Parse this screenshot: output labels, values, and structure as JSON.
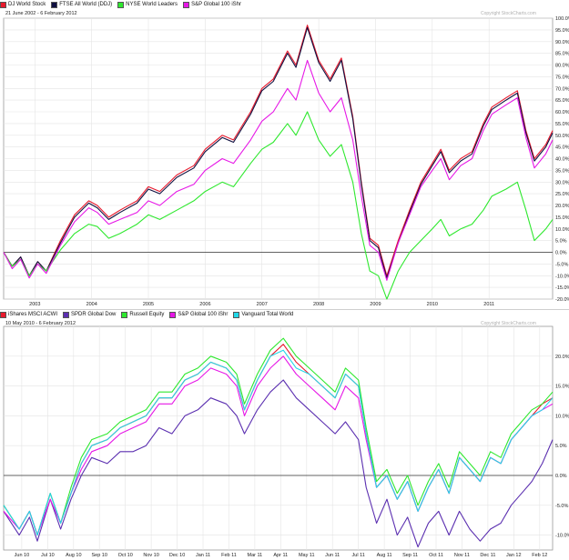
{
  "chart_data": [
    {
      "type": "line",
      "title": "21 June 2002 - 6 February 2012",
      "watermark": "Copyright StockCharts.com",
      "legend_position": "top-left",
      "grid": true,
      "ylim": [
        -20,
        100
      ],
      "x_range": [
        2002.45,
        2012.12
      ],
      "y_ticks": [
        -20,
        -15,
        -10,
        -5,
        0,
        5,
        10,
        15,
        20,
        25,
        30,
        35,
        40,
        45,
        50,
        55,
        60,
        65,
        70,
        75,
        80,
        85,
        90,
        95,
        100
      ],
      "y_tick_labels": [
        "-20.0%",
        "-15.0%",
        "-10.0%",
        "-5.0%",
        "0.0%",
        "5.0%",
        "10.0%",
        "15.0%",
        "20.0%",
        "25.0%",
        "30.0%",
        "35.0%",
        "40.0%",
        "45.0%",
        "50.0%",
        "55.0%",
        "60.0%",
        "65.0%",
        "70.0%",
        "75.0%",
        "80.0%",
        "85.0%",
        "90.0%",
        "95.0%",
        "100.0%"
      ],
      "x_ticks": [
        2003,
        2004,
        2005,
        2006,
        2007,
        2008,
        2009,
        2010,
        2011
      ],
      "x_tick_labels": [
        "2003",
        "2004",
        "2005",
        "2006",
        "2007",
        "2008",
        "2009",
        "2010",
        "2011"
      ],
      "series": [
        {
          "name": "DJ World Stock",
          "color": "#e8192c",
          "x": [
            2002.45,
            2002.6,
            2002.75,
            2002.9,
            2003.05,
            2003.2,
            2003.45,
            2003.7,
            2003.95,
            2004.1,
            2004.3,
            2004.5,
            2004.8,
            2005.0,
            2005.2,
            2005.5,
            2005.8,
            2006.0,
            2006.3,
            2006.5,
            2006.8,
            2007.0,
            2007.2,
            2007.45,
            2007.6,
            2007.8,
            2008.0,
            2008.2,
            2008.4,
            2008.6,
            2008.75,
            2008.9,
            2009.05,
            2009.2,
            2009.4,
            2009.6,
            2009.8,
            2010.0,
            2010.15,
            2010.3,
            2010.5,
            2010.7,
            2010.9,
            2011.05,
            2011.3,
            2011.5,
            2011.65,
            2011.8,
            2012.0,
            2012.12
          ],
          "y": [
            0,
            -6,
            -2,
            -10,
            -4,
            -8,
            5,
            16,
            22,
            20,
            15,
            18,
            22,
            28,
            26,
            33,
            37,
            44,
            50,
            48,
            60,
            70,
            74,
            86,
            80,
            97,
            82,
            74,
            83,
            58,
            30,
            6,
            3,
            -10,
            5,
            18,
            30,
            38,
            44,
            35,
            40,
            43,
            55,
            62,
            66,
            69,
            52,
            40,
            46,
            52
          ]
        },
        {
          "name": "FTSE All World (DDJ)",
          "color": "#101040",
          "x": [
            2002.45,
            2002.6,
            2002.75,
            2002.9,
            2003.05,
            2003.2,
            2003.45,
            2003.7,
            2003.95,
            2004.1,
            2004.3,
            2004.5,
            2004.8,
            2005.0,
            2005.2,
            2005.5,
            2005.8,
            2006.0,
            2006.3,
            2006.5,
            2006.8,
            2007.0,
            2007.2,
            2007.45,
            2007.6,
            2007.8,
            2008.0,
            2008.2,
            2008.4,
            2008.6,
            2008.75,
            2008.9,
            2009.05,
            2009.2,
            2009.4,
            2009.6,
            2009.8,
            2010.0,
            2010.15,
            2010.3,
            2010.5,
            2010.7,
            2010.9,
            2011.05,
            2011.3,
            2011.5,
            2011.65,
            2011.8,
            2012.0,
            2012.12
          ],
          "y": [
            0,
            -6,
            -2,
            -10,
            -4,
            -8,
            4,
            15,
            21,
            19,
            14,
            17,
            21,
            27,
            25,
            32,
            36,
            43,
            49,
            47,
            59,
            69,
            73,
            85,
            79,
            96,
            81,
            73,
            82,
            57,
            29,
            5,
            2,
            -11,
            4,
            17,
            29,
            37,
            43,
            34,
            39,
            42,
            54,
            61,
            65,
            68,
            51,
            39,
            45,
            51
          ]
        },
        {
          "name": "NYSE World Leaders",
          "color": "#2ee82e",
          "x": [
            2002.45,
            2002.6,
            2002.75,
            2002.9,
            2003.05,
            2003.2,
            2003.45,
            2003.7,
            2003.95,
            2004.1,
            2004.3,
            2004.5,
            2004.8,
            2005.0,
            2005.2,
            2005.5,
            2005.8,
            2006.0,
            2006.3,
            2006.5,
            2006.8,
            2007.0,
            2007.2,
            2007.45,
            2007.6,
            2007.8,
            2008.0,
            2008.2,
            2008.4,
            2008.6,
            2008.75,
            2008.9,
            2009.05,
            2009.2,
            2009.4,
            2009.6,
            2009.8,
            2010.0,
            2010.15,
            2010.3,
            2010.5,
            2010.7,
            2010.9,
            2011.05,
            2011.3,
            2011.5,
            2011.65,
            2011.8,
            2012.0,
            2012.12
          ],
          "y": [
            0,
            -6,
            -3,
            -10,
            -5,
            -8,
            1,
            8,
            12,
            11,
            6,
            8,
            12,
            16,
            14,
            18,
            22,
            26,
            30,
            28,
            38,
            44,
            47,
            55,
            50,
            60,
            48,
            41,
            46,
            30,
            8,
            -8,
            -10,
            -20,
            -8,
            0,
            5,
            10,
            14,
            7,
            10,
            12,
            18,
            24,
            27,
            30,
            18,
            5,
            10,
            14
          ]
        },
        {
          "name": "S&P Global 100 iShr",
          "color": "#e617e6",
          "x": [
            2002.45,
            2002.6,
            2002.75,
            2002.9,
            2003.05,
            2003.2,
            2003.45,
            2003.7,
            2003.95,
            2004.1,
            2004.3,
            2004.5,
            2004.8,
            2005.0,
            2005.2,
            2005.5,
            2005.8,
            2006.0,
            2006.3,
            2006.5,
            2006.8,
            2007.0,
            2007.2,
            2007.45,
            2007.6,
            2007.8,
            2008.0,
            2008.2,
            2008.4,
            2008.6,
            2008.75,
            2008.9,
            2009.05,
            2009.2,
            2009.4,
            2009.6,
            2009.8,
            2010.0,
            2010.15,
            2010.3,
            2010.5,
            2010.7,
            2010.9,
            2011.05,
            2011.3,
            2011.5,
            2011.65,
            2011.8,
            2012.0,
            2012.12
          ],
          "y": [
            0,
            -7,
            -3,
            -11,
            -5,
            -9,
            3,
            13,
            19,
            17,
            12,
            14,
            17,
            22,
            20,
            26,
            29,
            35,
            40,
            38,
            48,
            56,
            60,
            70,
            65,
            82,
            68,
            60,
            66,
            48,
            24,
            3,
            0,
            -12,
            4,
            16,
            28,
            35,
            40,
            31,
            37,
            40,
            52,
            59,
            63,
            66,
            49,
            36,
            42,
            48
          ]
        }
      ]
    },
    {
      "type": "line",
      "title": "10 May 2010 - 6 February 2012",
      "watermark": "Copyright StockCharts.com",
      "legend_position": "top-left",
      "grid": true,
      "ylim": [
        -12.5,
        25
      ],
      "x_range": [
        0,
        21.2
      ],
      "y_ticks": [
        -10,
        -5,
        0,
        5,
        10,
        15,
        20
      ],
      "y_tick_labels": [
        "-10.0%",
        "-5.0%",
        "0.0%",
        "5.0%",
        "10.0%",
        "15.0%",
        "20.0%"
      ],
      "x_ticks": [
        0.7,
        1.7,
        2.7,
        3.7,
        4.7,
        5.7,
        6.7,
        7.7,
        8.7,
        9.7,
        10.7,
        11.7,
        12.7,
        13.7,
        14.7,
        15.7,
        16.7,
        17.7,
        18.7,
        19.7,
        20.7
      ],
      "x_tick_labels": [
        "Jun 10",
        "Jul 10",
        "Aug 10",
        "Sep 10",
        "Oct 10",
        "Nov 10",
        "Dec 10",
        "Jan 11",
        "Feb 11",
        "Mar 11",
        "Apr 11",
        "May 11",
        "Jun 11",
        "Jul 11",
        "Aug 11",
        "Sep 11",
        "Oct 11",
        "Nov 11",
        "Dec 11",
        "Jan 12",
        "Feb 12"
      ],
      "series": [
        {
          "name": "iShares MSCI ACWI",
          "color": "#e8192c",
          "x": [
            0,
            0.6,
            1.0,
            1.3,
            1.8,
            2.2,
            2.6,
            3.0,
            3.4,
            4.0,
            4.5,
            5.0,
            5.5,
            6.0,
            6.5,
            7.0,
            7.5,
            8.0,
            8.6,
            9.0,
            9.3,
            9.8,
            10.3,
            10.8,
            11.3,
            11.8,
            12.3,
            12.8,
            13.2,
            13.7,
            14.0,
            14.4,
            14.8,
            15.2,
            15.6,
            16.0,
            16.4,
            16.8,
            17.2,
            17.6,
            18.0,
            18.4,
            18.8,
            19.2,
            19.6,
            20.0,
            20.4,
            20.8,
            21.2
          ],
          "y": [
            -5,
            -9,
            -6,
            -10,
            -3,
            -8,
            -3,
            2,
            5,
            6,
            8,
            9,
            10,
            13,
            13,
            16,
            17,
            19,
            18,
            16,
            11,
            16,
            20,
            22,
            19,
            17,
            15,
            13,
            17,
            15,
            7,
            -2,
            0,
            -4,
            -1,
            -6,
            -2,
            1,
            -3,
            3,
            1,
            -1,
            3,
            2,
            6,
            8,
            10,
            12,
            13
          ]
        },
        {
          "name": "SPDR Global Dow",
          "color": "#5b2fb0",
          "x": [
            0,
            0.6,
            1.0,
            1.3,
            1.8,
            2.2,
            2.6,
            3.0,
            3.4,
            4.0,
            4.5,
            5.0,
            5.5,
            6.0,
            6.5,
            7.0,
            7.5,
            8.0,
            8.6,
            9.0,
            9.3,
            9.8,
            10.3,
            10.8,
            11.3,
            11.8,
            12.3,
            12.8,
            13.2,
            13.7,
            14.0,
            14.4,
            14.8,
            15.2,
            15.6,
            16.0,
            16.4,
            16.8,
            17.2,
            17.6,
            18.0,
            18.4,
            18.8,
            19.2,
            19.6,
            20.0,
            20.4,
            20.8,
            21.2
          ],
          "y": [
            -6,
            -10,
            -7,
            -11,
            -4,
            -9,
            -4,
            0,
            3,
            2,
            4,
            4,
            5,
            8,
            7,
            10,
            11,
            13,
            12,
            10,
            7,
            11,
            14,
            16,
            13,
            11,
            9,
            7,
            9,
            6,
            -2,
            -8,
            -4,
            -10,
            -7,
            -12,
            -8,
            -6,
            -10,
            -6,
            -9,
            -11,
            -9,
            -8,
            -5,
            -3,
            -1,
            2,
            6
          ]
        },
        {
          "name": "Russell Equity",
          "color": "#2ee82e",
          "x": [
            0,
            0.6,
            1.0,
            1.3,
            1.8,
            2.2,
            2.6,
            3.0,
            3.4,
            4.0,
            4.5,
            5.0,
            5.5,
            6.0,
            6.5,
            7.0,
            7.5,
            8.0,
            8.6,
            9.0,
            9.3,
            9.8,
            10.3,
            10.8,
            11.3,
            11.8,
            12.3,
            12.8,
            13.2,
            13.7,
            14.0,
            14.4,
            14.8,
            15.2,
            15.6,
            16.0,
            16.4,
            16.8,
            17.2,
            17.6,
            18.0,
            18.4,
            18.8,
            19.2,
            19.6,
            20.0,
            20.4,
            20.8,
            21.2
          ],
          "y": [
            -5,
            -9,
            -6,
            -10,
            -3,
            -8,
            -2,
            3,
            6,
            7,
            9,
            10,
            11,
            14,
            14,
            17,
            18,
            20,
            19,
            17,
            12,
            17,
            21,
            23,
            20,
            18,
            16,
            14,
            18,
            16,
            8,
            -1,
            1,
            -3,
            0,
            -5,
            -1,
            2,
            -2,
            4,
            2,
            0,
            4,
            3,
            7,
            9,
            11,
            12,
            14
          ]
        },
        {
          "name": "S&P Global 100 iShr",
          "color": "#e617e6",
          "x": [
            0,
            0.6,
            1.0,
            1.3,
            1.8,
            2.2,
            2.6,
            3.0,
            3.4,
            4.0,
            4.5,
            5.0,
            5.5,
            6.0,
            6.5,
            7.0,
            7.5,
            8.0,
            8.6,
            9.0,
            9.3,
            9.8,
            10.3,
            10.8,
            11.3,
            11.8,
            12.3,
            12.8,
            13.2,
            13.7,
            14.0,
            14.4,
            14.8,
            15.2,
            15.6,
            16.0,
            16.4,
            16.8,
            17.2,
            17.6,
            18.0,
            18.4,
            18.8,
            19.2,
            19.6,
            20.0,
            20.4,
            20.8,
            21.2
          ],
          "y": [
            -6,
            -9,
            -6,
            -10,
            -4,
            -8,
            -3,
            1,
            4,
            5,
            7,
            8,
            9,
            12,
            12,
            15,
            16,
            18,
            17,
            15,
            10,
            15,
            18,
            20,
            17,
            15,
            13,
            11,
            15,
            13,
            6,
            -2,
            0,
            -4,
            -1,
            -6,
            -2,
            1,
            -3,
            3,
            1,
            -1,
            3,
            2,
            6,
            8,
            10,
            11,
            12
          ]
        },
        {
          "name": "Vanguard Total World",
          "color": "#22d8e8",
          "x": [
            0,
            0.6,
            1.0,
            1.3,
            1.8,
            2.2,
            2.6,
            3.0,
            3.4,
            4.0,
            4.5,
            5.0,
            5.5,
            6.0,
            6.5,
            7.0,
            7.5,
            8.0,
            8.6,
            9.0,
            9.3,
            9.8,
            10.3,
            10.8,
            11.3,
            11.8,
            12.3,
            12.8,
            13.2,
            13.7,
            14.0,
            14.4,
            14.8,
            15.2,
            15.6,
            16.0,
            16.4,
            16.8,
            17.2,
            17.6,
            18.0,
            18.4,
            18.8,
            19.2,
            19.6,
            20.0,
            20.4,
            20.8,
            21.2
          ],
          "y": [
            -5,
            -9,
            -6,
            -10,
            -3,
            -8,
            -3,
            2,
            5,
            6,
            8,
            9,
            10,
            13,
            13,
            16,
            17,
            19,
            18,
            16,
            11,
            16,
            20,
            21,
            18,
            17,
            15,
            13,
            17,
            15,
            7,
            -2,
            0,
            -4,
            -1,
            -6,
            -2,
            1,
            -3,
            3,
            1,
            -1,
            3,
            2,
            6,
            8,
            10,
            11,
            13
          ]
        }
      ]
    }
  ]
}
